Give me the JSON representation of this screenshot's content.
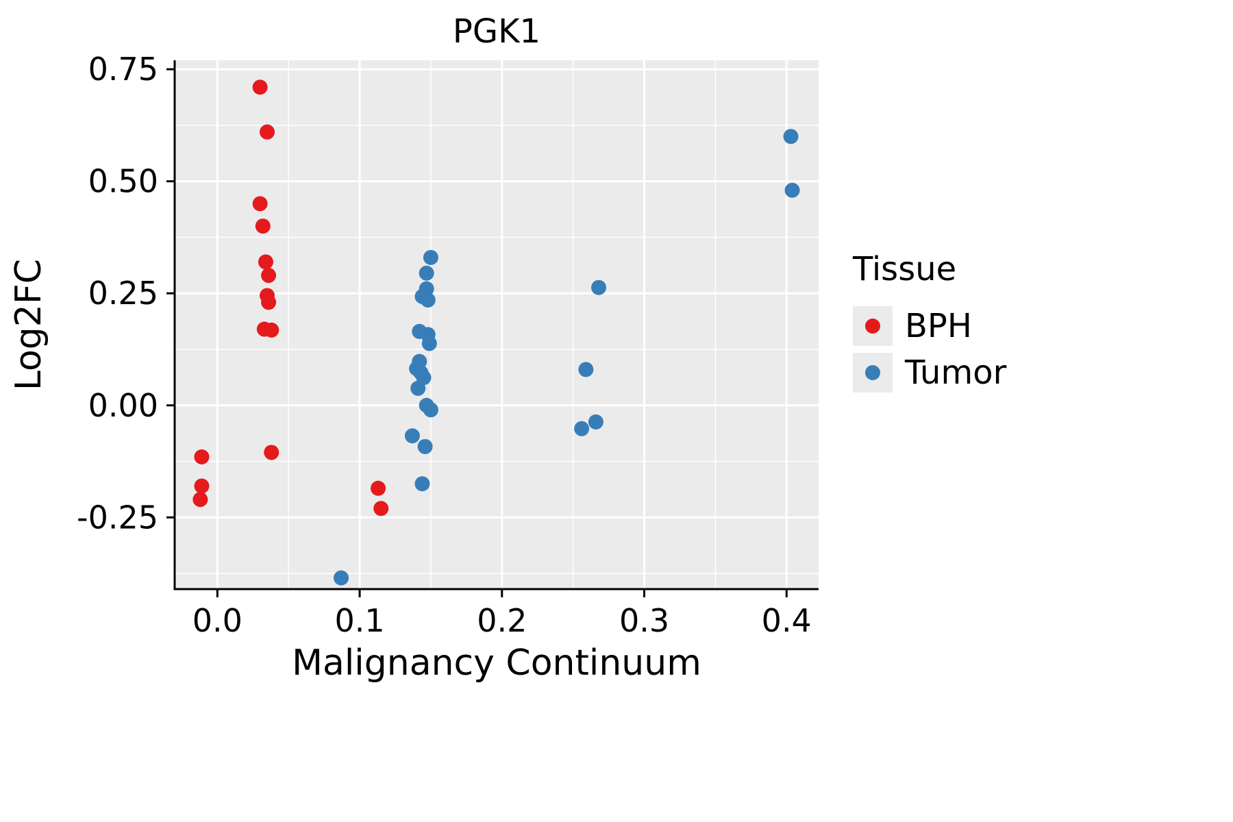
{
  "chart_data": {
    "type": "scatter",
    "title": "PGK1",
    "xlabel": "Malignancy Continuum",
    "ylabel": "Log2FC",
    "panel_background": "#EBEBEB",
    "grid_color": "#FFFFFF",
    "xlim": [
      -0.03,
      0.4225
    ],
    "ylim": [
      -0.41,
      0.77
    ],
    "x_ticks": [
      0.0,
      0.1,
      0.2,
      0.3,
      0.4
    ],
    "x_tick_labels": [
      "0.0",
      "0.1",
      "0.2",
      "0.3",
      "0.4"
    ],
    "y_ticks": [
      -0.25,
      0.0,
      0.25,
      0.5,
      0.75
    ],
    "y_tick_labels": [
      "-0.25",
      "0.00",
      "0.25",
      "0.50",
      "0.75"
    ],
    "x_minor_ticks": [
      0.05,
      0.15,
      0.25,
      0.35
    ],
    "y_minor_ticks": [
      -0.375,
      -0.125,
      0.125,
      0.375,
      0.625
    ],
    "legend": {
      "title": "Tissue",
      "position": "right",
      "entries": [
        {
          "label": "BPH",
          "color": "#E41A1C"
        },
        {
          "label": "Tumor",
          "color": "#377EB8"
        }
      ]
    },
    "series": [
      {
        "name": "BPH",
        "color": "#E41A1C",
        "points": [
          [
            0.03,
            0.71
          ],
          [
            0.035,
            0.61
          ],
          [
            0.03,
            0.45
          ],
          [
            0.032,
            0.4
          ],
          [
            0.034,
            0.32
          ],
          [
            0.036,
            0.29
          ],
          [
            0.035,
            0.245
          ],
          [
            0.036,
            0.23
          ],
          [
            0.033,
            0.17
          ],
          [
            0.038,
            0.168
          ],
          [
            0.038,
            -0.105
          ],
          [
            -0.011,
            -0.115
          ],
          [
            -0.011,
            -0.18
          ],
          [
            -0.012,
            -0.21
          ],
          [
            0.113,
            -0.185
          ],
          [
            0.115,
            -0.23
          ]
        ]
      },
      {
        "name": "Tumor",
        "color": "#377EB8",
        "points": [
          [
            0.403,
            0.6
          ],
          [
            0.404,
            0.48
          ],
          [
            0.15,
            0.33
          ],
          [
            0.147,
            0.295
          ],
          [
            0.147,
            0.26
          ],
          [
            0.144,
            0.243
          ],
          [
            0.148,
            0.235
          ],
          [
            0.268,
            0.263
          ],
          [
            0.142,
            0.165
          ],
          [
            0.148,
            0.158
          ],
          [
            0.149,
            0.138
          ],
          [
            0.142,
            0.098
          ],
          [
            0.14,
            0.082
          ],
          [
            0.143,
            0.073
          ],
          [
            0.145,
            0.062
          ],
          [
            0.141,
            0.038
          ],
          [
            0.259,
            0.08
          ],
          [
            0.147,
            0.0
          ],
          [
            0.15,
            -0.01
          ],
          [
            0.137,
            -0.068
          ],
          [
            0.146,
            -0.092
          ],
          [
            0.256,
            -0.052
          ],
          [
            0.266,
            -0.037
          ],
          [
            0.144,
            -0.175
          ],
          [
            0.087,
            -0.385
          ]
        ]
      }
    ]
  }
}
